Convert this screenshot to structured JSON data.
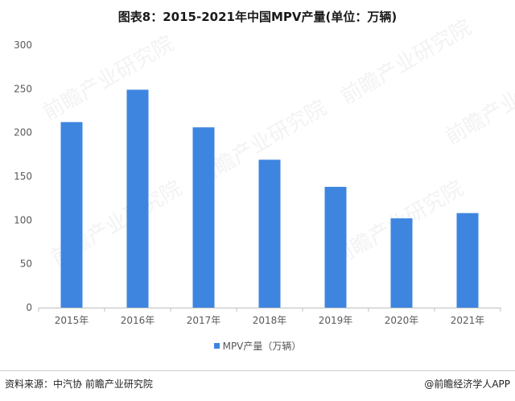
{
  "title": "图表8：2015-2021年中国MPV产量(单位：万辆)",
  "chart_data": {
    "type": "bar",
    "categories": [
      "2015年",
      "2016年",
      "2017年",
      "2018年",
      "2019年",
      "2020年",
      "2021年"
    ],
    "series": [
      {
        "name": "MPV产量（万辆）",
        "values": [
          212,
          249,
          206,
          169,
          138,
          102,
          108
        ]
      }
    ],
    "ylim": [
      0,
      300
    ],
    "yticks": [
      0,
      50,
      100,
      150,
      200,
      250,
      300
    ],
    "grid": false,
    "legend_position": "bottom"
  },
  "colors": {
    "bar": "#3e85e0",
    "axis": "#bfbfbf"
  },
  "watermark": {
    "text": "前瞻产业研究院"
  },
  "footer": {
    "source": "资料来源：中汽协 前瞻产业研究院",
    "credit": "@前瞻经济学人APP"
  }
}
